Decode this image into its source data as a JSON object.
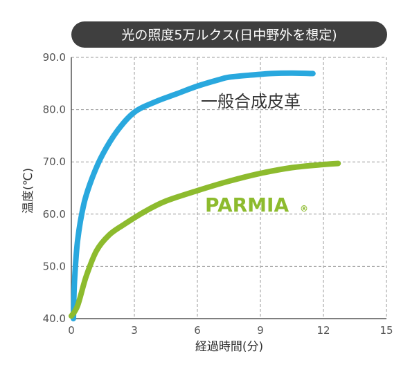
{
  "chart_data": {
    "type": "line",
    "title": "光の照度5万ルクス(日中野外を想定)",
    "xlabel": "経過時間(分)",
    "ylabel": "温度(℃)",
    "xlim": [
      0,
      15
    ],
    "ylim": [
      40,
      90
    ],
    "x_ticks": [
      "0",
      "3",
      "6",
      "9",
      "12",
      "15"
    ],
    "y_ticks": [
      "40.0",
      "50.0",
      "60.0",
      "70.0",
      "80.0",
      "90.0"
    ],
    "grid": true,
    "series": [
      {
        "name": "一般合成皮革",
        "color": "#29a8de",
        "x": [
          0.1,
          0.15,
          0.3,
          0.6,
          1.0,
          1.5,
          2.2,
          3.0,
          4.0,
          5.0,
          6.0,
          7.0,
          7.5,
          8.5,
          9.5,
          10.5,
          11.5
        ],
        "y": [
          40.0,
          47.0,
          55.0,
          62.0,
          67.0,
          71.5,
          76.0,
          79.5,
          81.5,
          83.0,
          84.5,
          85.7,
          86.2,
          86.6,
          86.9,
          87.0,
          86.9
        ]
      },
      {
        "name": "PARMIA",
        "name_mark": "®",
        "color": "#8dbb2e",
        "x": [
          0.0,
          0.3,
          0.7,
          1.2,
          1.8,
          2.5,
          3.5,
          4.5,
          6.0,
          7.5,
          9.0,
          10.5,
          12.0,
          12.7
        ],
        "y": [
          40.5,
          42.5,
          48.0,
          53.0,
          56.0,
          58.0,
          60.5,
          62.5,
          64.5,
          66.3,
          67.8,
          68.9,
          69.5,
          69.7
        ]
      }
    ]
  }
}
